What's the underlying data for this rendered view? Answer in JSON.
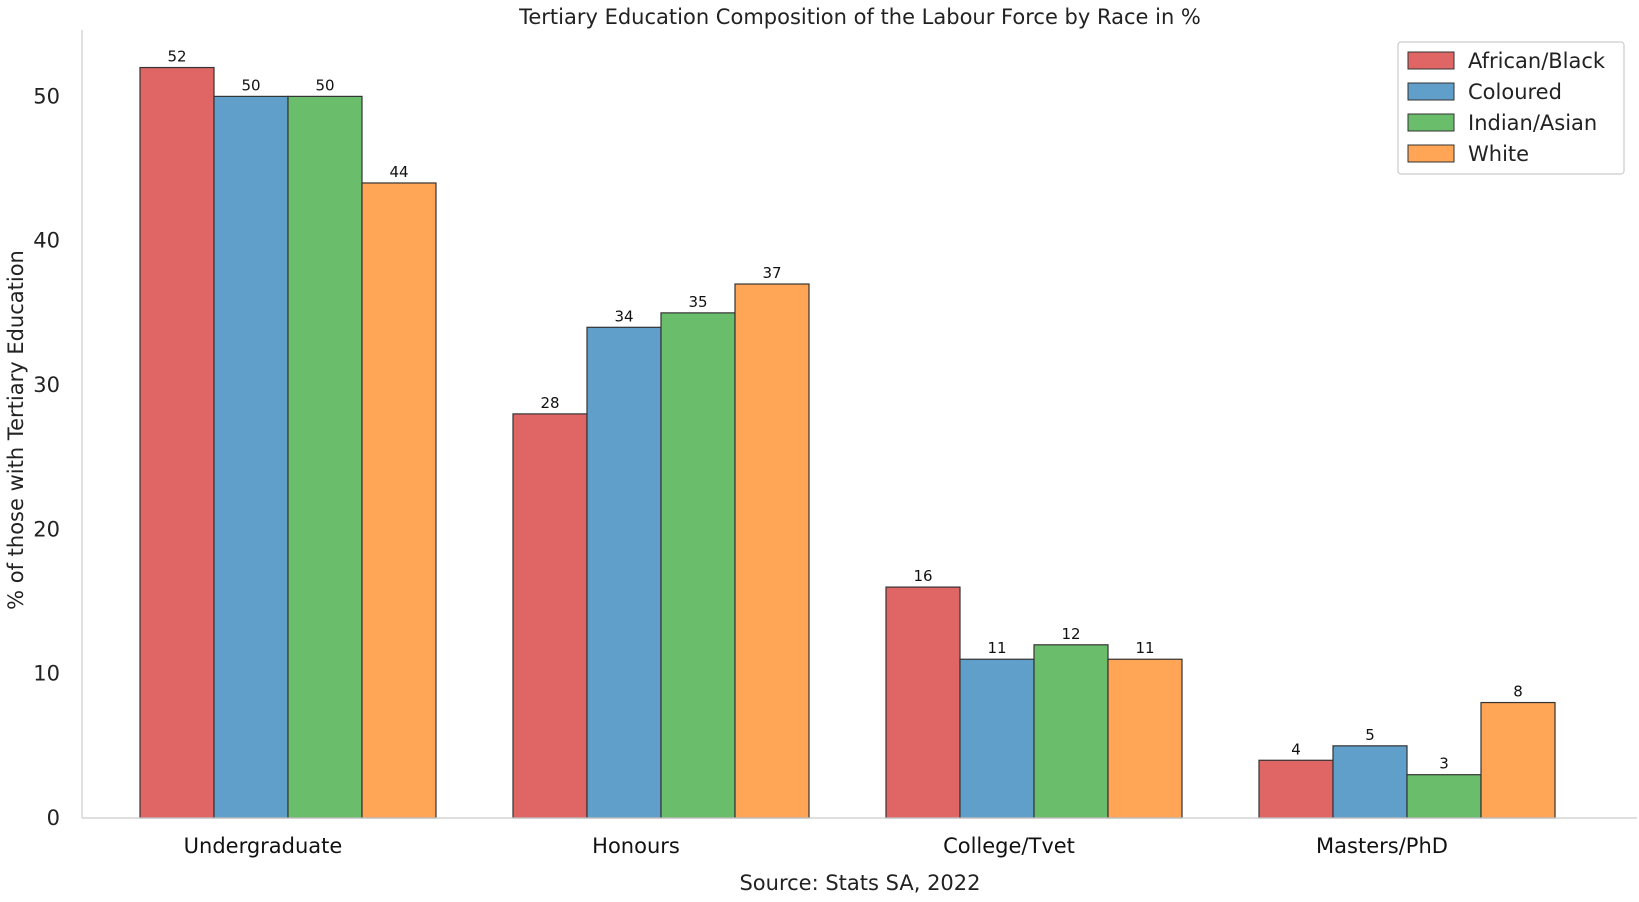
{
  "chart_data": {
    "type": "bar",
    "title": "Tertiary Education Composition of the Labour Force by Race in %",
    "xlabel": "Source: Stats SA, 2022",
    "ylabel": "% of those with Tertiary Education",
    "categories": [
      "Undergraduate",
      "Honours",
      "College/Tvet",
      "Masters/PhD"
    ],
    "series": [
      {
        "name": "African/Black",
        "color": "#e06666",
        "values": [
          52,
          28,
          16,
          4
        ]
      },
      {
        "name": "Coloured",
        "color": "#619fcb",
        "values": [
          50,
          34,
          11,
          5
        ]
      },
      {
        "name": "Indian/Asian",
        "color": "#6abd6a",
        "values": [
          50,
          35,
          12,
          3
        ]
      },
      {
        "name": "White",
        "color": "#ffa555",
        "values": [
          44,
          37,
          11,
          8
        ]
      }
    ],
    "ylim": [
      0,
      54.6
    ],
    "yticks": [
      0,
      10,
      20,
      30,
      40,
      50
    ],
    "grid": false,
    "legend_position": "top-right"
  }
}
